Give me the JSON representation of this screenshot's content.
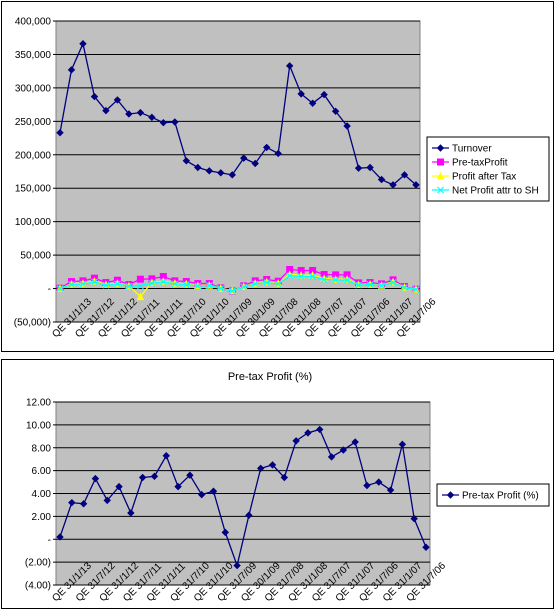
{
  "chart_data": [
    {
      "type": "line",
      "title": "",
      "ylim": [
        -50000,
        400000
      ],
      "y_tick_labels": [
        "(50,000)",
        "-",
        "50,000",
        "100,000",
        "150,000",
        "200,000",
        "250,000",
        "300,000",
        "350,000",
        "400,000"
      ],
      "x_tick_labels": [
        "QE 31/1/13",
        "QE 31/7/12",
        "QE 31/1/12",
        "QE 31/7/11",
        "QE 31/1/11",
        "QE 31/7/10",
        "QE 31/1/10",
        "QE 31/7/09",
        "QE 30/1/09",
        "QE 31/7/08",
        "QE 31/1/08",
        "QE 31/7/07",
        "QE 31/1/07",
        "QE 31/7/06",
        "QE 31/1/07",
        "QE 31/7/06"
      ],
      "grid": true,
      "legend_position": "right",
      "series": [
        {
          "name": "Turnover",
          "color": "#000080",
          "marker": "diamond",
          "values": [
            233000,
            327000,
            366000,
            287000,
            266000,
            282000,
            261000,
            263000,
            256000,
            248000,
            249000,
            191000,
            181000,
            176000,
            173000,
            170000,
            195000,
            187000,
            211000,
            202000,
            333000,
            291000,
            277000,
            290000,
            265000,
            243000,
            180000,
            181000,
            163000,
            155000,
            170000,
            155000
          ]
        },
        {
          "name": "Pre-taxProfit",
          "color": "#ff00ff",
          "marker": "square",
          "values": [
            500,
            10500,
            11500,
            15500,
            9000,
            12500,
            6000,
            14000,
            14500,
            18000,
            11500,
            10500,
            7500,
            7500,
            1000,
            -3500,
            4000,
            11500,
            13500,
            11000,
            28500,
            27000,
            27000,
            21000,
            20500,
            20500,
            8500,
            9000,
            7000,
            13000,
            3000,
            -1000
          ]
        },
        {
          "name": "Profit after Tax",
          "color": "#ffff00",
          "marker": "triangle",
          "values": [
            0,
            7000,
            8000,
            11000,
            6000,
            8000,
            4000,
            -12000,
            9000,
            11000,
            8000,
            7000,
            4500,
            5000,
            500,
            -3000,
            3000,
            8000,
            10000,
            8000,
            21000,
            20000,
            20000,
            15000,
            14000,
            14000,
            6000,
            6500,
            5000,
            10000,
            2000,
            -1000
          ]
        },
        {
          "name": "Net Profit attr to SH",
          "color": "#00ffff",
          "marker": "x",
          "values": [
            0,
            6000,
            7000,
            10000,
            5000,
            7000,
            3500,
            4000,
            8000,
            10000,
            7000,
            6000,
            4000,
            4500,
            0,
            -3500,
            2500,
            7000,
            9000,
            7000,
            19000,
            18000,
            18000,
            13500,
            13000,
            12500,
            5000,
            6000,
            4500,
            9000,
            1500,
            -1500
          ]
        }
      ]
    },
    {
      "type": "line",
      "title": "Pre-tax Profit (%)",
      "ylim": [
        -4,
        12
      ],
      "y_tick_labels": [
        "(4.00)",
        "(2.00)",
        "-",
        "2.00",
        "4.00",
        "6.00",
        "8.00",
        "10.00",
        "12.00"
      ],
      "x_tick_labels": [
        "QE 31/1/13",
        "QE 31/7/12",
        "QE 31/1/12",
        "QE 31/7/11",
        "QE 31/1/11",
        "QE 31/7/10",
        "QE 31/1/10",
        "QE 31/7/09",
        "QE 30/1/09",
        "QE 31/7/08",
        "QE 31/1/08",
        "QE 31/7/07",
        "QE 31/1/07",
        "QE 31/7/06",
        "QE 31/1/07",
        "QE 31/7/06"
      ],
      "grid": true,
      "legend_position": "right",
      "series": [
        {
          "name": "Pre-tax Profit (%)",
          "color": "#000080",
          "marker": "diamond",
          "values": [
            0.2,
            3.2,
            3.1,
            5.3,
            3.4,
            4.6,
            2.3,
            5.4,
            5.5,
            7.3,
            4.6,
            5.6,
            3.9,
            4.2,
            0.6,
            -2.3,
            2.1,
            6.2,
            6.5,
            5.4,
            8.6,
            9.3,
            9.6,
            7.2,
            7.8,
            8.5,
            4.7,
            5.0,
            4.3,
            8.3,
            1.8,
            -0.7
          ]
        }
      ]
    }
  ]
}
